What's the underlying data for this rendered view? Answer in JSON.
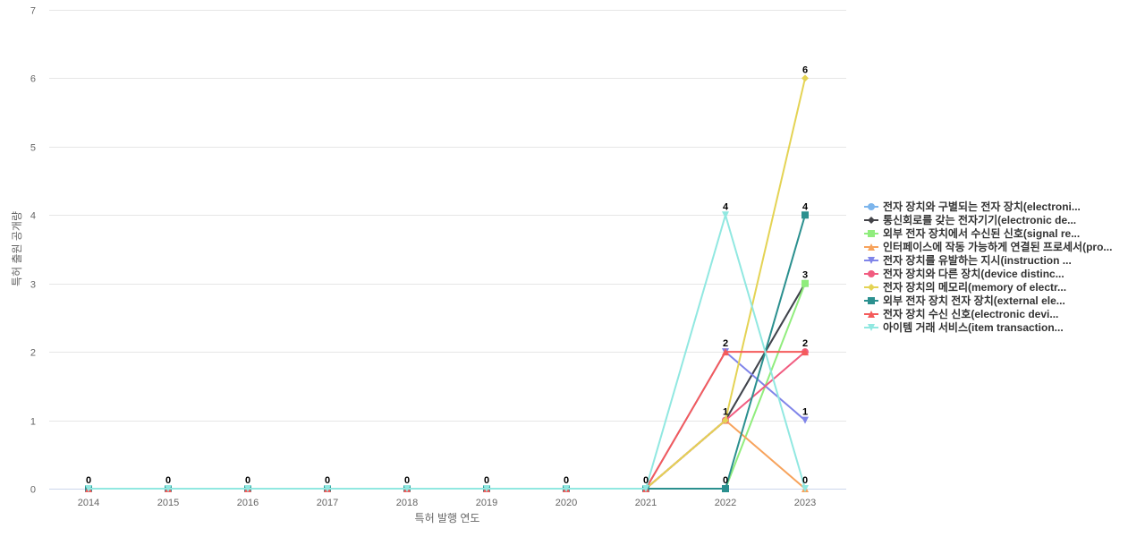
{
  "chart_data": {
    "type": "line",
    "xlabel": "특허 발행 연도",
    "ylabel": "특허 출원 공개량",
    "ylim": [
      0,
      7
    ],
    "yticks": [
      0,
      1,
      2,
      3,
      4,
      5,
      6,
      7
    ],
    "grid": true,
    "legend_position": "right",
    "categories": [
      "2014",
      "2015",
      "2016",
      "2017",
      "2018",
      "2019",
      "2020",
      "2021",
      "2022",
      "2023"
    ],
    "series": [
      {
        "name": "전자 장치와 구별되는 전자 장치(electroni...",
        "color": "#7cb5ec",
        "marker": "circle",
        "values": [
          0,
          0,
          0,
          0,
          0,
          0,
          0,
          0,
          1,
          3
        ]
      },
      {
        "name": "통신회로를 갖는 전자기기(electronic de...",
        "color": "#434348",
        "marker": "diamond",
        "values": [
          0,
          0,
          0,
          0,
          0,
          0,
          0,
          0,
          1,
          3
        ]
      },
      {
        "name": "외부 전자 장치에서 수신된 신호(signal re...",
        "color": "#90ed7d",
        "marker": "square",
        "values": [
          0,
          0,
          0,
          0,
          0,
          0,
          0,
          0,
          0,
          3
        ]
      },
      {
        "name": "인터페이스에 작동 가능하게 연결된 프로세서(pro...",
        "color": "#f7a35c",
        "marker": "triangle",
        "values": [
          0,
          0,
          0,
          0,
          0,
          0,
          0,
          0,
          1,
          0
        ]
      },
      {
        "name": "전자 장치를 유발하는 지시(instruction ...",
        "color": "#8085e9",
        "marker": "triangle-down",
        "values": [
          0,
          0,
          0,
          0,
          0,
          0,
          0,
          0,
          2,
          1
        ]
      },
      {
        "name": "전자 장치와 다른 장치(device distinc...",
        "color": "#f15c80",
        "marker": "circle",
        "values": [
          0,
          0,
          0,
          0,
          0,
          0,
          0,
          0,
          1,
          2
        ]
      },
      {
        "name": "전자 장치의 메모리(memory of electr...",
        "color": "#e4d354",
        "marker": "diamond",
        "values": [
          0,
          0,
          0,
          0,
          0,
          0,
          0,
          0,
          1,
          6
        ]
      },
      {
        "name": "외부 전자 장치 전자 장치(external ele...",
        "color": "#2b908f",
        "marker": "square",
        "values": [
          0,
          0,
          0,
          0,
          0,
          0,
          0,
          0,
          0,
          4
        ]
      },
      {
        "name": "전자 장치 수신 신호(electronic devi...",
        "color": "#f45b5b",
        "marker": "triangle",
        "values": [
          0,
          0,
          0,
          0,
          0,
          0,
          0,
          0,
          2,
          2
        ]
      },
      {
        "name": "아이템 거래 서비스(item transaction...",
        "color": "#91e8e1",
        "marker": "triangle-down",
        "values": [
          0,
          0,
          0,
          0,
          0,
          0,
          0,
          0,
          4,
          0
        ]
      }
    ],
    "data_labels": [
      {
        "x": "2014",
        "value": 0
      },
      {
        "x": "2015",
        "value": 0
      },
      {
        "x": "2016",
        "value": 0
      },
      {
        "x": "2017",
        "value": 0
      },
      {
        "x": "2018",
        "value": 0
      },
      {
        "x": "2019",
        "value": 0
      },
      {
        "x": "2020",
        "value": 0
      },
      {
        "x": "2021",
        "value": 0
      },
      {
        "x": "2022",
        "value": 4
      },
      {
        "x": "2022",
        "value": 2
      },
      {
        "x": "2022",
        "value": 1
      },
      {
        "x": "2022",
        "value": 0
      },
      {
        "x": "2023",
        "value": 6
      },
      {
        "x": "2023",
        "value": 4
      },
      {
        "x": "2023",
        "value": 3
      },
      {
        "x": "2023",
        "value": 2
      },
      {
        "x": "2023",
        "value": 1
      },
      {
        "x": "2023",
        "value": 0
      }
    ]
  }
}
